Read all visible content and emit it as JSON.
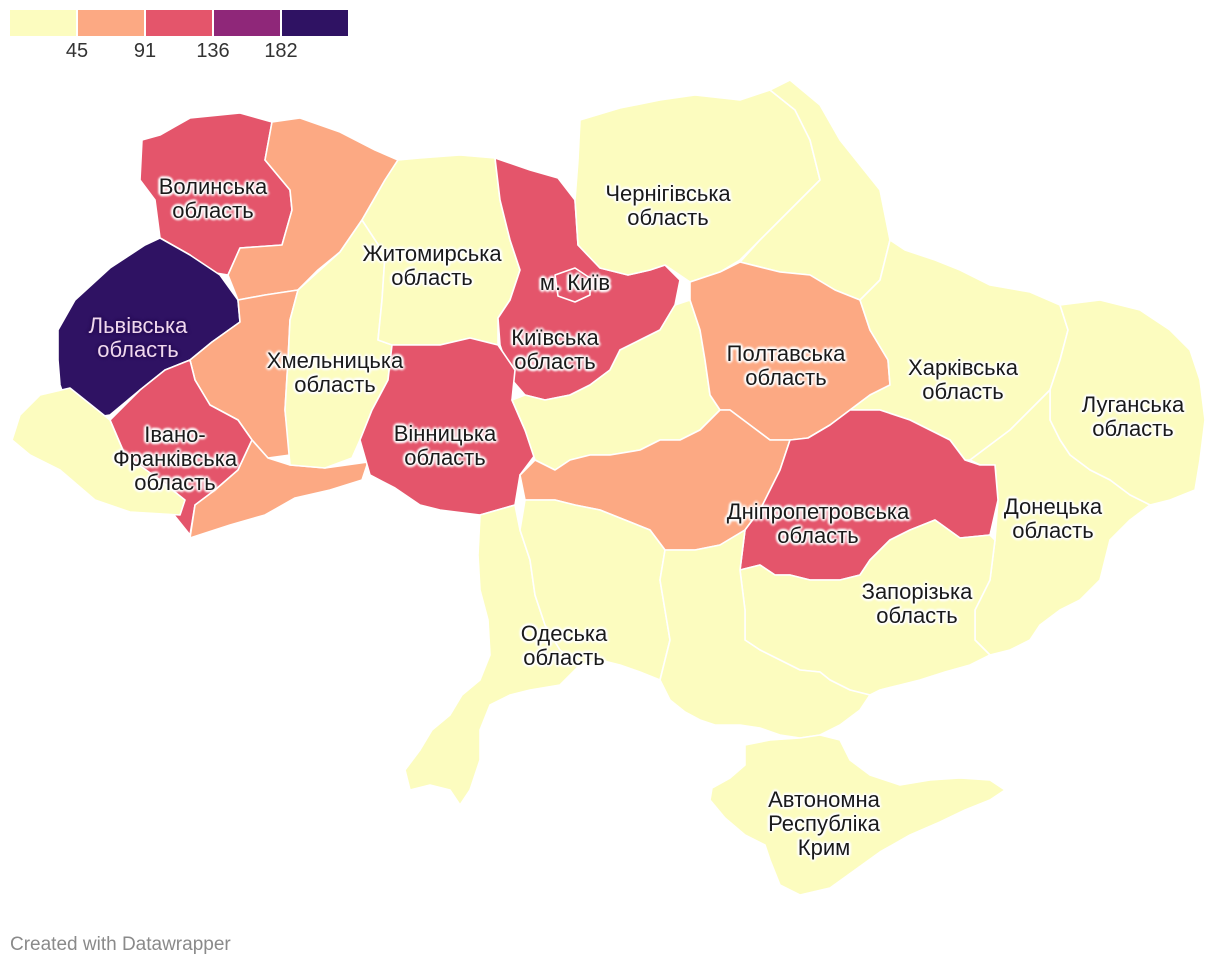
{
  "legend": {
    "colors": [
      "#fcfcbf",
      "#fca983",
      "#e4556b",
      "#8f2779",
      "#2f1263"
    ],
    "ticks": [
      "45",
      "91",
      "136",
      "182"
    ]
  },
  "regions": [
    {
      "id": "volyn",
      "name": "Волинська\nобласть",
      "fill": "#e4556b",
      "dark": false
    },
    {
      "id": "rivne",
      "name": "",
      "fill": "#fca983",
      "dark": false
    },
    {
      "id": "lviv",
      "name": "Львівська\nобласть",
      "fill": "#2f1263",
      "dark": true
    },
    {
      "id": "ternopil",
      "name": "",
      "fill": "#fca983",
      "dark": false
    },
    {
      "id": "ivano",
      "name": "Івано-\nФранківська\nобласть",
      "fill": "#e4556b",
      "dark": false
    },
    {
      "id": "zakarpattia",
      "name": "",
      "fill": "#fcfcbf",
      "dark": false
    },
    {
      "id": "chernivtsi",
      "name": "",
      "fill": "#fca983",
      "dark": false
    },
    {
      "id": "khmelnytskyi",
      "name": "Хмельницька\nобласть",
      "fill": "#fcfcbf",
      "dark": false
    },
    {
      "id": "zhytomyr",
      "name": "Житомирська\nобласть",
      "fill": "#fcfcbf",
      "dark": false
    },
    {
      "id": "kyivobl",
      "name": "Київська\nобласть",
      "fill": "#e4556b",
      "dark": false
    },
    {
      "id": "kyivcity",
      "name": "м. Київ",
      "fill": "#e4556b",
      "dark": false
    },
    {
      "id": "vinnytsia",
      "name": "Вінницька\nобласть",
      "fill": "#e4556b",
      "dark": false
    },
    {
      "id": "chernihiv",
      "name": "Чернігівська\nобласть",
      "fill": "#fcfcbf",
      "dark": false
    },
    {
      "id": "sumy",
      "name": "",
      "fill": "#fcfcbf",
      "dark": false
    },
    {
      "id": "cherkasy",
      "name": "",
      "fill": "#fcfcbf",
      "dark": false
    },
    {
      "id": "poltava",
      "name": "Полтавська\nобласть",
      "fill": "#fca983",
      "dark": false
    },
    {
      "id": "kirovohrad",
      "name": "",
      "fill": "#fca983",
      "dark": false
    },
    {
      "id": "kharkiv",
      "name": "Харківська\nобласть",
      "fill": "#fcfcbf",
      "dark": false
    },
    {
      "id": "luhansk",
      "name": "Луганська\nобласть",
      "fill": "#fcfcbf",
      "dark": false
    },
    {
      "id": "donetsk",
      "name": "Донецька\nобласть",
      "fill": "#fcfcbf",
      "dark": false
    },
    {
      "id": "dnipro",
      "name": "Дніпропетровська\nобласть",
      "fill": "#e4556b",
      "dark": false
    },
    {
      "id": "zaporizhzhia",
      "name": "Запорізька\nобласть",
      "fill": "#fcfcbf",
      "dark": false
    },
    {
      "id": "odesa",
      "name": "Одеська\nобласть",
      "fill": "#fcfcbf",
      "dark": false
    },
    {
      "id": "mykolaiv",
      "name": "",
      "fill": "#fcfcbf",
      "dark": false
    },
    {
      "id": "kherson",
      "name": "",
      "fill": "#fcfcbf",
      "dark": false
    },
    {
      "id": "crimea",
      "name": "Автономна\nРеспубліка\nКрим",
      "fill": "#fcfcbf",
      "dark": false
    }
  ],
  "credit": "Created with Datawrapper"
}
